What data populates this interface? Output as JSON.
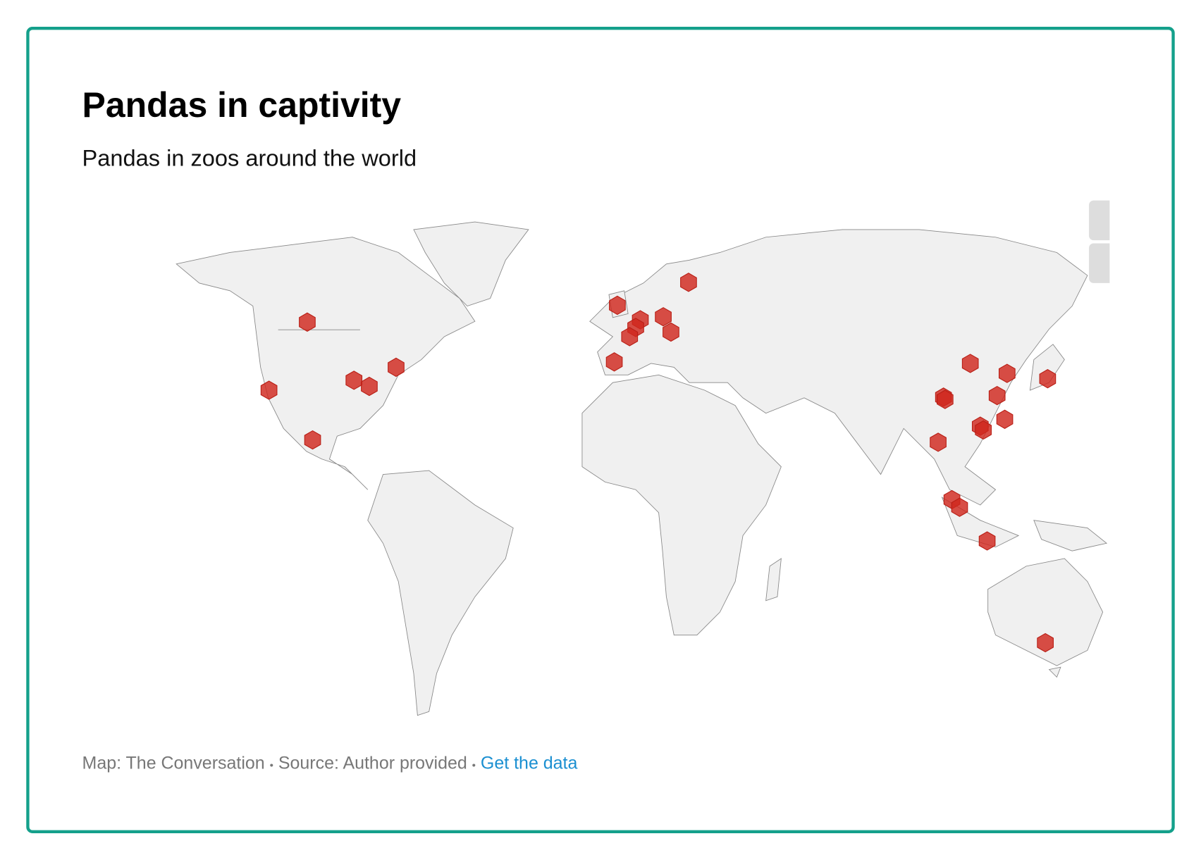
{
  "header": {
    "title": "Pandas in captivity",
    "subtitle": "Pandas in zoos around the world"
  },
  "footer": {
    "credit": "Map: The Conversation",
    "separator": "•",
    "source": "Source: Author provided",
    "link": "Get the data"
  }
}
